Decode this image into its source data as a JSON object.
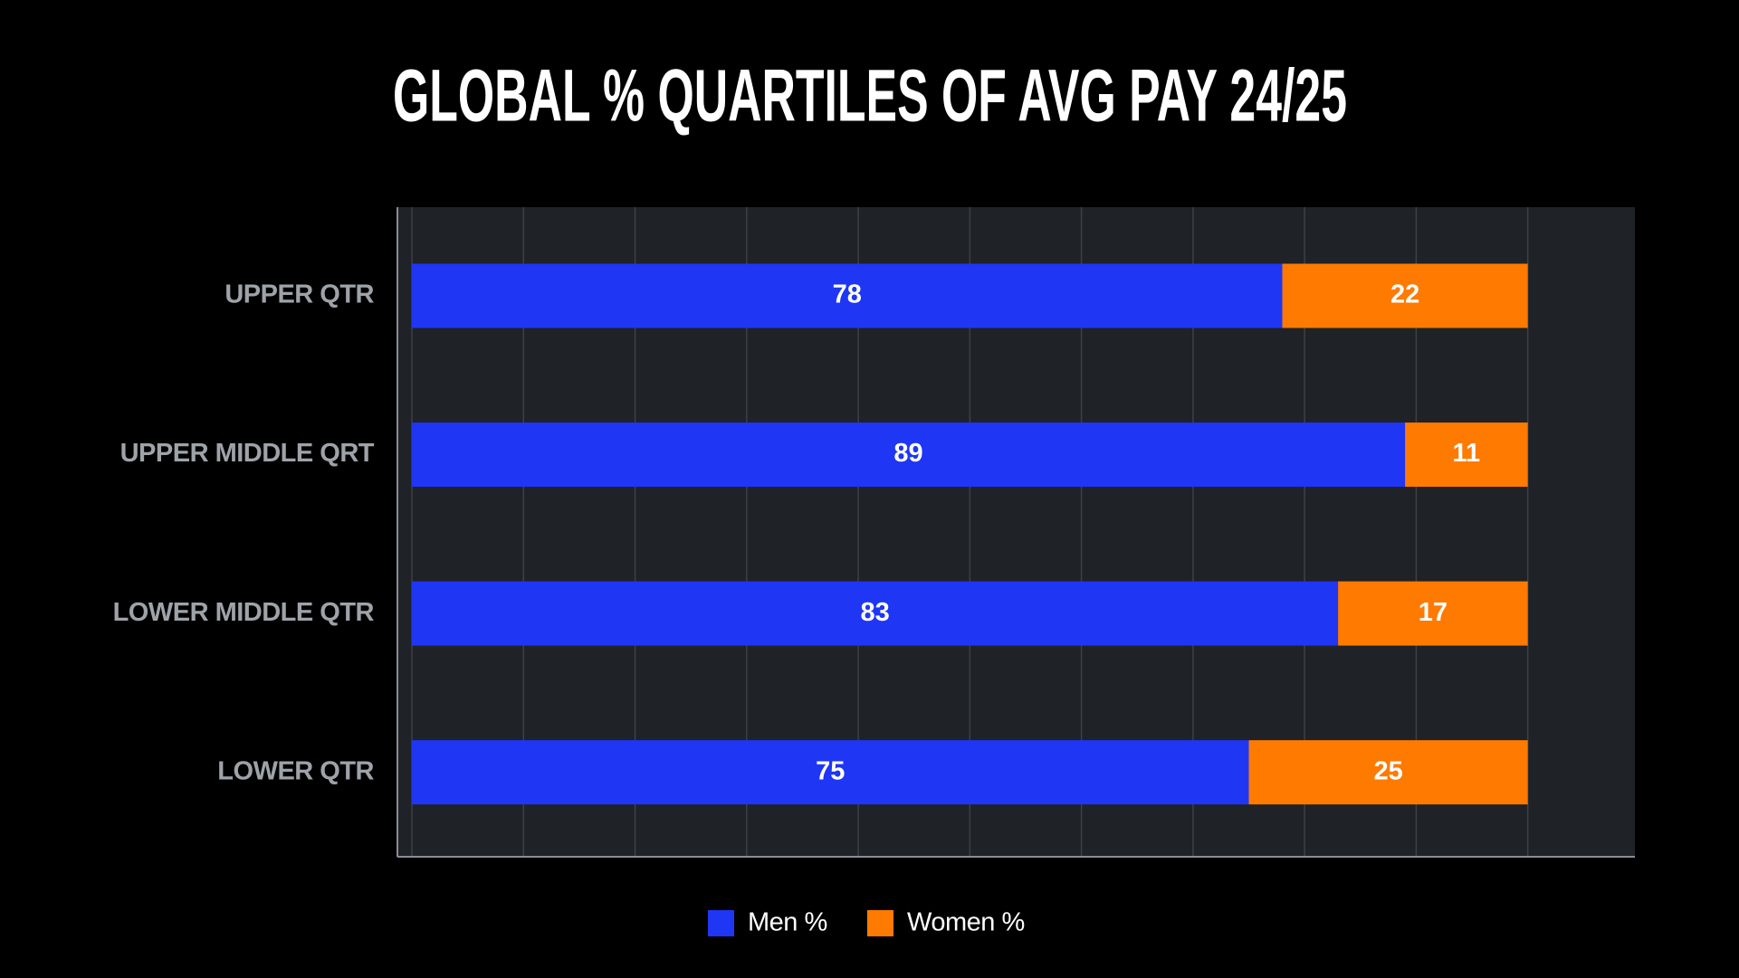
{
  "chart_data": {
    "type": "stacked-bar-horizontal",
    "title": "GLOBAL % QUARTILES OF AVG PAY 24/25",
    "categories": [
      "UPPER QTR",
      "UPPER MIDDLE QRT",
      "LOWER MIDDLE QTR",
      "LOWER QTR"
    ],
    "series": [
      {
        "name": "Men %",
        "color": "#1f36f5",
        "values": [
          78,
          89,
          83,
          75
        ]
      },
      {
        "name": "Women %",
        "color": "#ff7a00",
        "values": [
          22,
          11,
          17,
          25
        ]
      }
    ],
    "xlim": [
      -1.3,
      109.6
    ],
    "xticks": [
      0,
      10,
      20,
      30,
      40,
      50,
      60,
      70,
      80,
      90,
      100
    ],
    "grid": true,
    "legend": "bottom"
  }
}
